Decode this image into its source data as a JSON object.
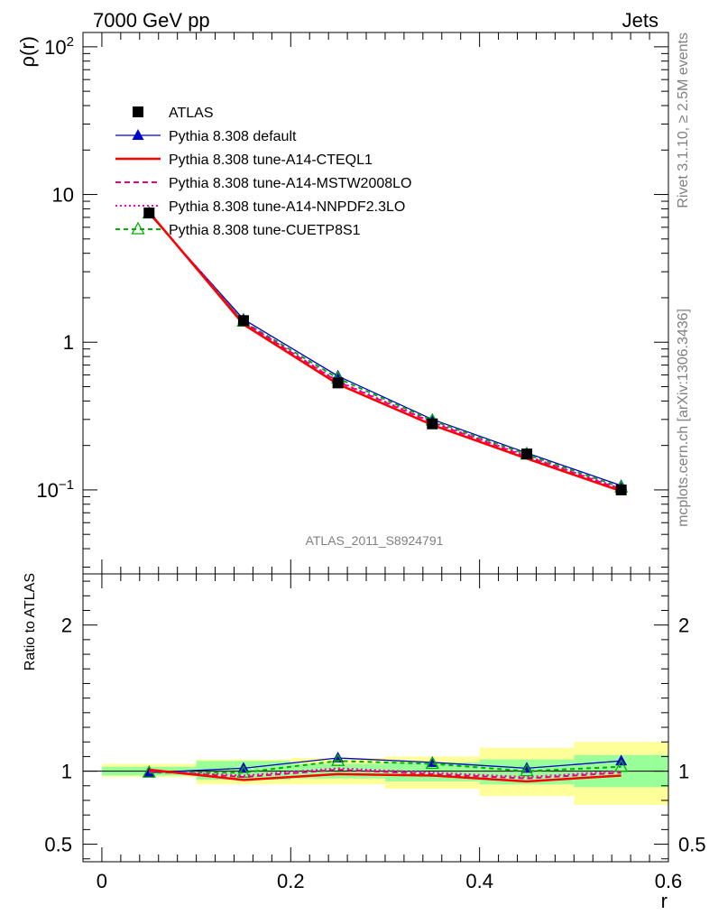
{
  "header": {
    "left": "7000 GeV pp",
    "right": "Jets"
  },
  "side_labels": {
    "upper": "Rivet 3.1.10, ≥ 2.5M events",
    "lower": "mcplots.cern.ch [arXiv:1306.3436]"
  },
  "analysis_label": "ATLAS_2011_S8924791",
  "colors": {
    "data": "#000000",
    "default": "#0000cc",
    "cteql1": "#ff0000",
    "mstw": "#e6007e",
    "nnpdf": "#ff00cc",
    "cuetp8s1": "#00b000",
    "band_inner": "#99ff99",
    "band_outer": "#ffff99"
  },
  "chart_data": [
    {
      "type": "line",
      "ylabel": "ρ(r)",
      "ylog": true,
      "ylim": [
        0.027,
        125
      ],
      "xlim": [
        -0.02,
        0.6
      ],
      "x": [
        0.05,
        0.15,
        0.25,
        0.35,
        0.45,
        0.55
      ],
      "y_ticks": [
        {
          "v": 0.1,
          "base": "10",
          "exp": "−1"
        },
        {
          "v": 1,
          "label": "1"
        },
        {
          "v": 10,
          "label": "10"
        },
        {
          "v": 100,
          "base": "10",
          "exp": "2"
        }
      ],
      "legend": {
        "placement": "top-left"
      },
      "series": [
        {
          "name": "ATLAS",
          "key": "data",
          "marker": "square",
          "values": [
            7.5,
            1.4,
            0.53,
            0.28,
            0.175,
            0.1
          ]
        },
        {
          "name": "Pythia 8.308 default",
          "key": "default",
          "marker": "triangle",
          "values": [
            7.4,
            1.43,
            0.59,
            0.3,
            0.178,
            0.107
          ]
        },
        {
          "name": "Pythia 8.308 tune-A14-CTEQL1",
          "key": "cteql1",
          "marker": "none",
          "values": [
            7.6,
            1.32,
            0.52,
            0.275,
            0.163,
            0.098
          ]
        },
        {
          "name": "Pythia 8.308 tune-A14-MSTW2008LO",
          "key": "mstw",
          "marker": "none",
          "dash": "6,4",
          "values": [
            7.55,
            1.36,
            0.54,
            0.285,
            0.168,
            0.101
          ]
        },
        {
          "name": "Pythia 8.308 tune-A14-NNPDF2.3LO",
          "key": "nnpdf",
          "marker": "none",
          "dash": "2,3",
          "values": [
            7.55,
            1.37,
            0.545,
            0.288,
            0.17,
            0.102
          ]
        },
        {
          "name": "Pythia 8.308 tune-CUETP8S1",
          "key": "cuetp8s1",
          "marker": "open-triangle",
          "dash": "5,4",
          "values": [
            7.45,
            1.38,
            0.57,
            0.295,
            0.174,
            0.104
          ]
        }
      ]
    },
    {
      "type": "line",
      "xlabel": "r",
      "ylabel": "Ratio to ATLAS",
      "ylim": [
        0.38,
        2.35
      ],
      "xlim": [
        -0.02,
        0.6
      ],
      "x": [
        0.05,
        0.15,
        0.25,
        0.35,
        0.45,
        0.55
      ],
      "x_ticks": [
        {
          "v": 0,
          "label": "0"
        },
        {
          "v": 0.2,
          "label": "0.2"
        },
        {
          "v": 0.4,
          "label": "0.4"
        },
        {
          "v": 0.6,
          "label": "0.6"
        }
      ],
      "y_ticks": [
        {
          "v": 0.5,
          "label": "0.5"
        },
        {
          "v": 1,
          "label": "1"
        },
        {
          "v": 2,
          "label": "2"
        }
      ],
      "bands": [
        {
          "x0": 0.0,
          "x1": 0.1,
          "inner": [
            0.97,
            1.03
          ],
          "outer": [
            0.96,
            1.05
          ]
        },
        {
          "x0": 0.1,
          "x1": 0.2,
          "inner": [
            0.94,
            1.07
          ],
          "outer": [
            0.91,
            1.08
          ]
        },
        {
          "x0": 0.2,
          "x1": 0.3,
          "inner": [
            0.95,
            1.05
          ],
          "outer": [
            0.91,
            1.09
          ]
        },
        {
          "x0": 0.3,
          "x1": 0.4,
          "inner": [
            0.93,
            1.06
          ],
          "outer": [
            0.88,
            1.1
          ]
        },
        {
          "x0": 0.4,
          "x1": 0.5,
          "inner": [
            0.91,
            1.08
          ],
          "outer": [
            0.83,
            1.16
          ]
        },
        {
          "x0": 0.5,
          "x1": 0.6,
          "inner": [
            0.89,
            1.11
          ],
          "outer": [
            0.77,
            1.2
          ]
        }
      ],
      "series": [
        {
          "key": "default",
          "marker": "triangle",
          "values": [
            0.99,
            1.02,
            1.09,
            1.06,
            1.02,
            1.07
          ]
        },
        {
          "key": "cteql1",
          "marker": "none",
          "values": [
            1.01,
            0.94,
            0.98,
            0.97,
            0.93,
            0.97
          ]
        },
        {
          "key": "mstw",
          "marker": "none",
          "dash": "6,4",
          "values": [
            1.0,
            0.96,
            1.01,
            0.98,
            0.95,
            0.99
          ]
        },
        {
          "key": "nnpdf",
          "marker": "none",
          "dash": "2,3",
          "values": [
            1.0,
            0.97,
            1.02,
            0.99,
            0.96,
            1.0
          ]
        },
        {
          "key": "cuetp8s1",
          "marker": "open-triangle",
          "dash": "5,4",
          "values": [
            0.99,
            0.99,
            1.07,
            1.05,
            1.0,
            1.03
          ]
        }
      ]
    }
  ]
}
